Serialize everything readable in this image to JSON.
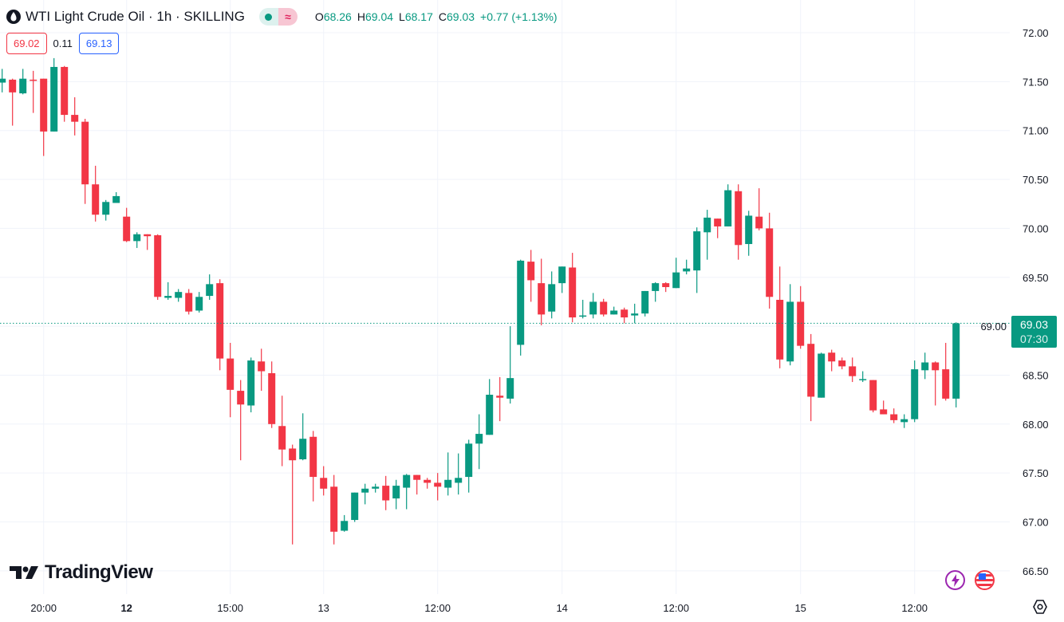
{
  "header": {
    "symbol_title": "WTI Light Crude Oil · 1h · SKILLING",
    "status_icon": "market-open-dot",
    "indicator_icon": "≈",
    "ohlc": [
      {
        "key": "O",
        "value": "68.26"
      },
      {
        "key": "H",
        "value": "69.04"
      },
      {
        "key": "L",
        "value": "68.17"
      },
      {
        "key": "C",
        "value": "69.03"
      }
    ],
    "change": "+0.77 (+1.13%)"
  },
  "quote": {
    "bid": "69.02",
    "spread": "0.11",
    "ask": "69.13"
  },
  "last_price": {
    "price": "69.03",
    "countdown": "07:30"
  },
  "branding": {
    "logo_text": "TradingView"
  },
  "colors": {
    "up": "#089981",
    "down": "#F23645",
    "grid": "#F0F3FA",
    "bid": "#F23645",
    "ask": "#2962FF"
  },
  "chart_data": {
    "type": "candlestick",
    "title": "WTI Light Crude Oil · 1h · SKILLING",
    "ylim": [
      66.4,
      72.15
    ],
    "y_ticks": [
      "72.00",
      "71.50",
      "71.00",
      "70.50",
      "70.00",
      "69.50",
      "69.00",
      "68.50",
      "68.00",
      "67.50",
      "67.00",
      "66.50"
    ],
    "x_ticks": [
      {
        "index": 4,
        "label": "20:00",
        "bold": false
      },
      {
        "index": 12,
        "label": "12",
        "bold": true
      },
      {
        "index": 22,
        "label": "15:00",
        "bold": false
      },
      {
        "index": 31,
        "label": "13",
        "bold": false
      },
      {
        "index": 42,
        "label": "12:00",
        "bold": false
      },
      {
        "index": 54,
        "label": "14",
        "bold": false
      },
      {
        "index": 65,
        "label": "12:00",
        "bold": false
      },
      {
        "index": 77,
        "label": "15",
        "bold": false
      },
      {
        "index": 88,
        "label": "12:00",
        "bold": false
      }
    ],
    "last_value": 69.03,
    "candles_ohlc": [
      [
        71.49,
        71.63,
        71.39,
        71.53
      ],
      [
        71.52,
        71.53,
        71.05,
        71.39
      ],
      [
        71.38,
        71.63,
        71.37,
        71.53
      ],
      [
        71.52,
        71.61,
        71.18,
        71.51
      ],
      [
        71.53,
        71.53,
        70.74,
        70.99
      ],
      [
        70.99,
        71.74,
        70.99,
        71.65
      ],
      [
        71.65,
        71.66,
        71.09,
        71.16
      ],
      [
        71.16,
        71.34,
        70.95,
        71.09
      ],
      [
        71.09,
        71.12,
        70.25,
        70.45
      ],
      [
        70.45,
        70.64,
        70.07,
        70.14
      ],
      [
        70.14,
        70.29,
        70.08,
        70.27
      ],
      [
        70.26,
        70.37,
        70.26,
        70.33
      ],
      [
        70.12,
        70.21,
        69.86,
        69.87
      ],
      [
        69.87,
        69.96,
        69.8,
        69.94
      ],
      [
        69.94,
        69.94,
        69.78,
        69.92
      ],
      [
        69.93,
        69.94,
        69.27,
        69.3
      ],
      [
        69.29,
        69.45,
        69.27,
        69.31
      ],
      [
        69.29,
        69.38,
        69.25,
        69.35
      ],
      [
        69.34,
        69.38,
        69.12,
        69.15
      ],
      [
        69.16,
        69.35,
        69.14,
        69.3
      ],
      [
        69.31,
        69.53,
        69.27,
        69.43
      ],
      [
        69.44,
        69.48,
        68.55,
        68.67
      ],
      [
        68.67,
        68.83,
        68.07,
        68.35
      ],
      [
        68.34,
        68.45,
        67.63,
        68.2
      ],
      [
        68.19,
        68.68,
        68.12,
        68.65
      ],
      [
        68.64,
        68.77,
        68.34,
        68.54
      ],
      [
        68.52,
        68.64,
        67.96,
        68.0
      ],
      [
        67.98,
        68.29,
        67.57,
        67.74
      ],
      [
        67.75,
        67.79,
        66.77,
        67.63
      ],
      [
        67.64,
        68.11,
        67.63,
        67.85
      ],
      [
        67.87,
        67.93,
        67.21,
        67.46
      ],
      [
        67.45,
        67.57,
        67.27,
        67.34
      ],
      [
        67.36,
        67.48,
        66.77,
        66.9
      ],
      [
        66.91,
        67.07,
        66.9,
        67.01
      ],
      [
        67.02,
        67.3,
        67.0,
        67.3
      ],
      [
        67.3,
        67.39,
        67.18,
        67.34
      ],
      [
        67.34,
        67.39,
        67.3,
        67.36
      ],
      [
        67.37,
        67.47,
        67.12,
        67.22
      ],
      [
        67.24,
        67.43,
        67.13,
        67.37
      ],
      [
        67.35,
        67.49,
        67.13,
        67.48
      ],
      [
        67.48,
        67.48,
        67.28,
        67.43
      ],
      [
        67.43,
        67.45,
        67.34,
        67.4
      ],
      [
        67.4,
        67.5,
        67.22,
        67.36
      ],
      [
        67.35,
        67.71,
        67.27,
        67.43
      ],
      [
        67.4,
        67.7,
        67.28,
        67.45
      ],
      [
        67.46,
        67.84,
        67.3,
        67.8
      ],
      [
        67.8,
        68.1,
        67.54,
        67.9
      ],
      [
        67.89,
        68.46,
        67.89,
        68.3
      ],
      [
        68.29,
        68.48,
        68.03,
        68.27
      ],
      [
        68.26,
        69.0,
        68.21,
        68.47
      ],
      [
        68.81,
        69.68,
        68.7,
        69.67
      ],
      [
        69.66,
        69.78,
        69.25,
        69.47
      ],
      [
        69.44,
        69.69,
        69.01,
        69.12
      ],
      [
        69.15,
        69.56,
        69.08,
        69.43
      ],
      [
        69.44,
        69.61,
        69.34,
        69.61
      ],
      [
        69.6,
        69.75,
        69.04,
        69.09
      ],
      [
        69.1,
        69.27,
        69.08,
        69.11
      ],
      [
        69.12,
        69.34,
        69.08,
        69.25
      ],
      [
        69.25,
        69.28,
        69.1,
        69.12
      ],
      [
        69.12,
        69.2,
        69.12,
        69.16
      ],
      [
        69.17,
        69.19,
        69.03,
        69.09
      ],
      [
        69.11,
        69.23,
        69.03,
        69.13
      ],
      [
        69.13,
        69.36,
        69.1,
        69.36
      ],
      [
        69.36,
        69.45,
        69.25,
        69.44
      ],
      [
        69.44,
        69.45,
        69.35,
        69.4
      ],
      [
        69.39,
        69.7,
        69.39,
        69.55
      ],
      [
        69.56,
        69.68,
        69.53,
        69.59
      ],
      [
        69.57,
        70.01,
        69.34,
        69.97
      ],
      [
        69.96,
        70.19,
        69.68,
        70.11
      ],
      [
        70.1,
        70.1,
        69.9,
        70.02
      ],
      [
        70.02,
        70.45,
        70.02,
        70.39
      ],
      [
        70.38,
        70.45,
        69.68,
        69.83
      ],
      [
        69.84,
        70.18,
        69.72,
        70.13
      ],
      [
        70.12,
        70.41,
        69.98,
        70.0
      ],
      [
        70.0,
        70.16,
        69.18,
        69.3
      ],
      [
        69.27,
        69.61,
        68.57,
        68.66
      ],
      [
        68.64,
        69.43,
        68.6,
        69.25
      ],
      [
        69.25,
        69.41,
        68.77,
        68.8
      ],
      [
        68.82,
        68.92,
        68.03,
        68.28
      ],
      [
        68.27,
        68.73,
        68.27,
        68.72
      ],
      [
        68.73,
        68.76,
        68.54,
        68.64
      ],
      [
        68.65,
        68.68,
        68.56,
        68.59
      ],
      [
        68.59,
        68.68,
        68.43,
        68.49
      ],
      [
        68.45,
        68.54,
        68.43,
        68.46
      ],
      [
        68.45,
        68.45,
        68.12,
        68.14
      ],
      [
        68.15,
        68.24,
        68.1,
        68.1
      ],
      [
        68.1,
        68.16,
        68.01,
        68.04
      ],
      [
        68.02,
        68.1,
        67.96,
        68.05
      ],
      [
        68.05,
        68.65,
        68.02,
        68.56
      ],
      [
        68.55,
        68.73,
        68.46,
        68.63
      ],
      [
        68.63,
        68.64,
        68.19,
        68.55
      ],
      [
        68.56,
        68.83,
        68.24,
        68.26
      ],
      [
        68.26,
        69.04,
        68.17,
        69.03
      ]
    ]
  }
}
